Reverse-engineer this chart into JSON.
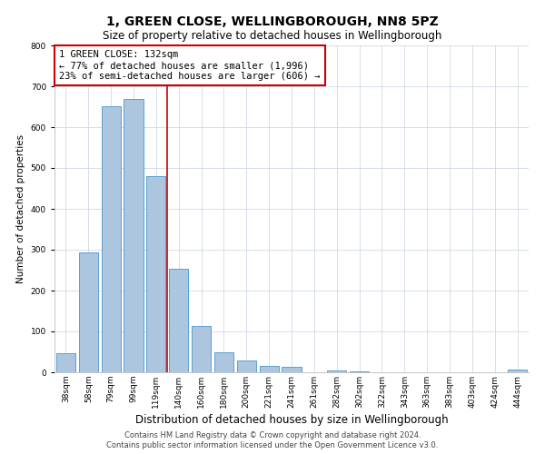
{
  "title": "1, GREEN CLOSE, WELLINGBOROUGH, NN8 5PZ",
  "subtitle": "Size of property relative to detached houses in Wellingborough",
  "xlabel": "Distribution of detached houses by size in Wellingborough",
  "ylabel": "Number of detached properties",
  "bar_labels": [
    "38sqm",
    "58sqm",
    "79sqm",
    "99sqm",
    "119sqm",
    "140sqm",
    "160sqm",
    "180sqm",
    "200sqm",
    "221sqm",
    "241sqm",
    "261sqm",
    "282sqm",
    "302sqm",
    "322sqm",
    "343sqm",
    "363sqm",
    "383sqm",
    "403sqm",
    "424sqm",
    "444sqm"
  ],
  "bar_values": [
    47,
    293,
    651,
    668,
    479,
    253,
    113,
    48,
    28,
    15,
    13,
    1,
    4,
    2,
    1,
    1,
    0,
    1,
    0,
    0,
    7
  ],
  "bar_color": "#adc6e0",
  "bar_edge_color": "#5a9fd4",
  "annotation_title": "1 GREEN CLOSE: 132sqm",
  "annotation_line1": "← 77% of detached houses are smaller (1,996)",
  "annotation_line2": "23% of semi-detached houses are larger (606) →",
  "annotation_box_color": "#ffffff",
  "annotation_box_edge_color": "#cc0000",
  "vline_color": "#cc0000",
  "vline_x": 4.5,
  "ylim": [
    0,
    800
  ],
  "yticks": [
    0,
    100,
    200,
    300,
    400,
    500,
    600,
    700,
    800
  ],
  "footer1": "Contains HM Land Registry data © Crown copyright and database right 2024.",
  "footer2": "Contains public sector information licensed under the Open Government Licence v3.0.",
  "bg_color": "#ffffff",
  "grid_color": "#d0d8e8",
  "title_fontsize": 10,
  "subtitle_fontsize": 8.5,
  "xlabel_fontsize": 8.5,
  "ylabel_fontsize": 7.5,
  "tick_fontsize": 6.5,
  "footer_fontsize": 6,
  "annotation_fontsize": 7.5
}
